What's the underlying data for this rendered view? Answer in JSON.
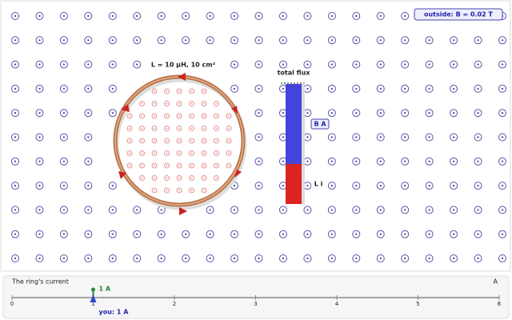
{
  "field_label": "outside: B = 0.02 T",
  "ring_label": "L = 10 μH, 10 cm²",
  "flux_title": "total flux",
  "flux_parts": [
    "B A",
    "L i"
  ],
  "panel": {
    "title": "The ring's current",
    "unit": "A",
    "slider": {
      "ticks": [
        0,
        1,
        2,
        3,
        4,
        5,
        6
      ],
      "value": 1,
      "value_label": "1 A",
      "caption": "you: 1 A"
    }
  }
}
